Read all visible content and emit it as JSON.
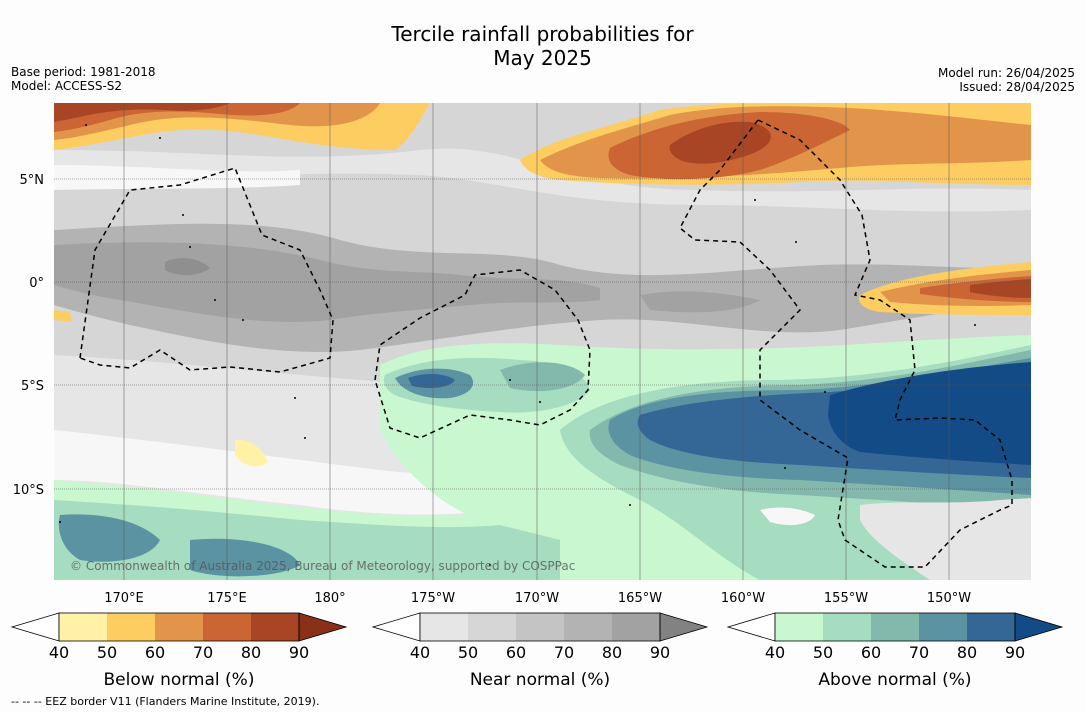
{
  "header": {
    "title_line1": "Tercile rainfall probabilities for",
    "title_line2": "May 2025",
    "base_period": "Base period: 1981-2018",
    "model": "Model: ACCESS-S2",
    "model_run": "Model run: 26/04/2025",
    "issued": "Issued: 28/04/2025"
  },
  "map": {
    "lat_labels": [
      "5°N",
      "0°",
      "5°S",
      "10°S"
    ],
    "lon_labels": [
      "170°E",
      "175°E",
      "180°",
      "175°W",
      "170°W",
      "165°W",
      "160°W",
      "155°W",
      "150°W"
    ],
    "copyright": "© Commonwealth of Australia 2025, Bureau of Meteorology, supported by COSPPac"
  },
  "colorbars": [
    {
      "name": "below-normal",
      "title": "Below normal (%)",
      "ticks": [
        "40",
        "50",
        "60",
        "70",
        "80",
        "90"
      ],
      "colors": [
        "#fff1a6",
        "#fdcd62",
        "#e2954a",
        "#cb6534",
        "#a84524",
        "#8a2f18"
      ]
    },
    {
      "name": "near-normal",
      "title": "Near normal (%)",
      "ticks": [
        "40",
        "50",
        "60",
        "70",
        "80",
        "90"
      ],
      "colors": [
        "#e6e6e6",
        "#d6d6d6",
        "#c4c4c4",
        "#b3b3b3",
        "#a2a2a2",
        "#828282"
      ]
    },
    {
      "name": "above-normal",
      "title": "Above normal (%)",
      "ticks": [
        "40",
        "50",
        "60",
        "70",
        "80",
        "90"
      ],
      "colors": [
        "#c9f7cf",
        "#a6dcc0",
        "#83b9ad",
        "#5b93a3",
        "#346796",
        "#134b86"
      ]
    }
  ],
  "footer": {
    "eez_note": "--  --  -- EEZ border V11 (Flanders Marine Institute, 2019)."
  }
}
